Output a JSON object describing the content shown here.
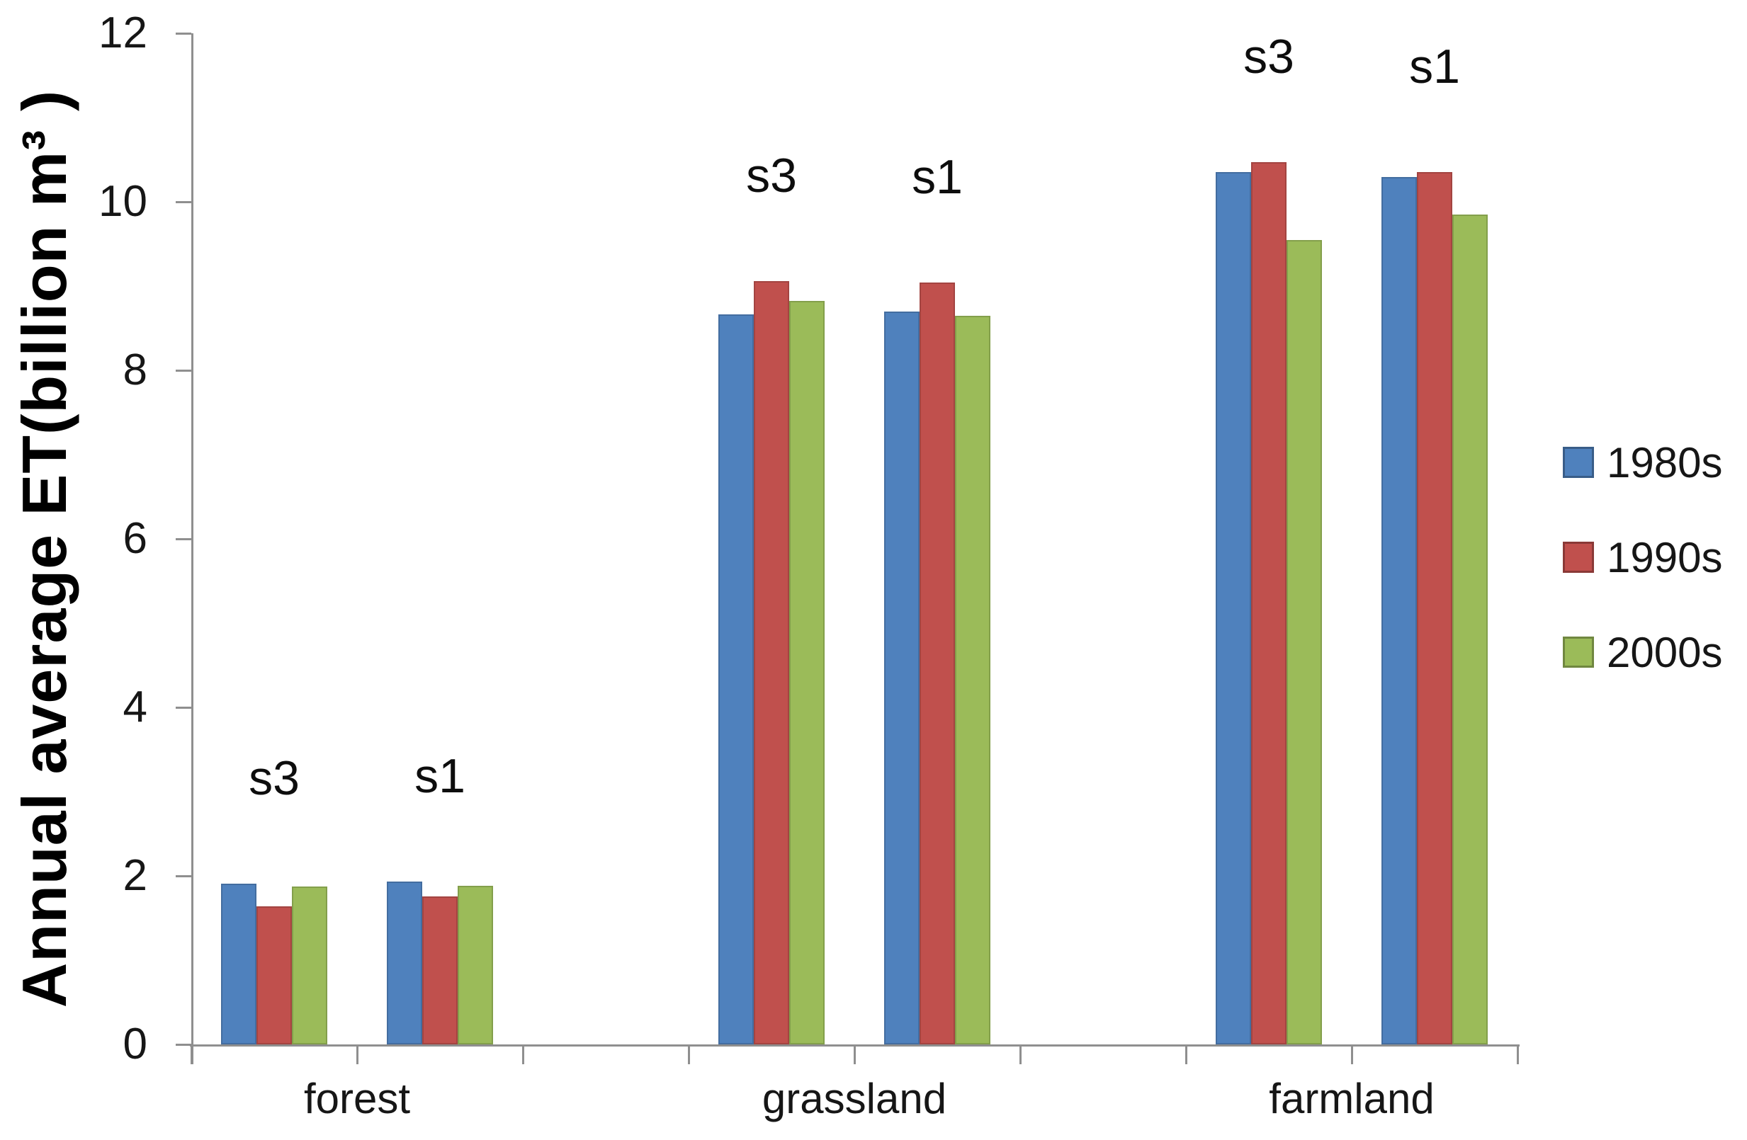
{
  "chart_data": {
    "type": "bar",
    "title": "",
    "xlabel": "",
    "ylabel": "Annual average ET(billion m³ )",
    "ylim": [
      0,
      12
    ],
    "yticks": [
      0,
      2,
      4,
      6,
      8,
      10,
      12
    ],
    "grid": false,
    "legend_position": "right",
    "axis_color": "#8F8F8F",
    "text_color": "#161616",
    "categories": [
      "forest",
      "grassland",
      "farmland"
    ],
    "subgroup_labels": [
      "s3",
      "s1"
    ],
    "series": [
      {
        "name": "1980s",
        "color": "#4F81BD",
        "values": {
          "forest": [
            1.91,
            1.93
          ],
          "grassland": [
            8.66,
            8.7
          ],
          "farmland": [
            10.35,
            10.29
          ]
        }
      },
      {
        "name": "1990s",
        "color": "#C0504D",
        "values": {
          "forest": [
            1.64,
            1.76
          ],
          "grassland": [
            9.06,
            9.04
          ],
          "farmland": [
            10.47,
            10.35
          ]
        }
      },
      {
        "name": "2000s",
        "color": "#9BBB59",
        "values": {
          "forest": [
            1.87,
            1.88
          ],
          "grassland": [
            8.82,
            8.65
          ],
          "farmland": [
            9.55,
            9.85
          ]
        }
      }
    ]
  }
}
